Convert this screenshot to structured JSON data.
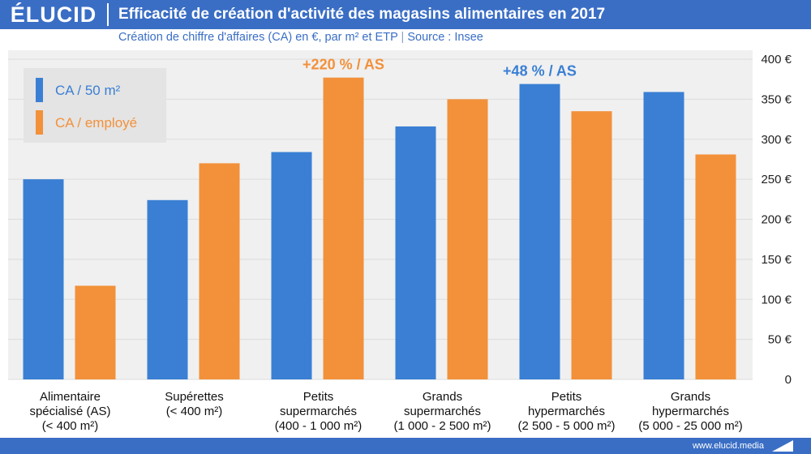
{
  "header": {
    "logo": "ÉLUCID",
    "title": "Efficacité de création d'activité des magasins alimentaires en 2017"
  },
  "subtitle": {
    "text": "Création de chiffre d'affaires (CA) en €, par m² et ETP",
    "separator": "|",
    "source": "Source : Insee"
  },
  "footer": {
    "url": "www.elucid.media"
  },
  "colors": {
    "blue": "#3a7fd4",
    "orange": "#f2913a",
    "brand": "#3a6ec5",
    "text": "#1a1a1a",
    "grid": "#dcdcdc",
    "plot_bg": "#f0f0f0"
  },
  "chart_data": {
    "type": "bar",
    "categories": [
      [
        "Alimentaire",
        "spécialisé (AS)",
        "(< 400 m²)"
      ],
      [
        "Supérettes",
        "(< 400 m²)"
      ],
      [
        "Petits",
        "supermarchés",
        "(400 - 1 000 m²)"
      ],
      [
        "Grands",
        "supermarchés",
        "(1 000 - 2 500 m²)"
      ],
      [
        "Petits",
        "hypermarchés",
        "(2 500 - 5 000 m²)"
      ],
      [
        "Grands",
        "hypermarchés",
        "(5 000 - 25 000 m²)"
      ]
    ],
    "series": [
      {
        "name": "CA / 50 m²",
        "color": "#3a7fd4",
        "values": [
          250,
          224,
          284,
          316,
          369,
          359
        ]
      },
      {
        "name": "CA / employé",
        "color": "#f2913a",
        "values": [
          117,
          270,
          377,
          350,
          335,
          281
        ]
      }
    ],
    "yticks": [
      {
        "value": 0,
        "label": "0"
      },
      {
        "value": 50,
        "label": "50 €"
      },
      {
        "value": 100,
        "label": "100 €"
      },
      {
        "value": 150,
        "label": "150 €"
      },
      {
        "value": 200,
        "label": "200 €"
      },
      {
        "value": 250,
        "label": "250 €"
      },
      {
        "value": 300,
        "label": "300 €"
      },
      {
        "value": 350,
        "label": "350 €"
      },
      {
        "value": 400,
        "label": "400 €"
      }
    ],
    "ylim": [
      0,
      400
    ],
    "grid": true,
    "legend_position": "top-left",
    "annotations": [
      {
        "text": "+220 % / AS",
        "category_index": 2,
        "series_index": 1
      },
      {
        "text": "+48 % / AS",
        "category_index": 4,
        "series_index": 0
      }
    ]
  }
}
